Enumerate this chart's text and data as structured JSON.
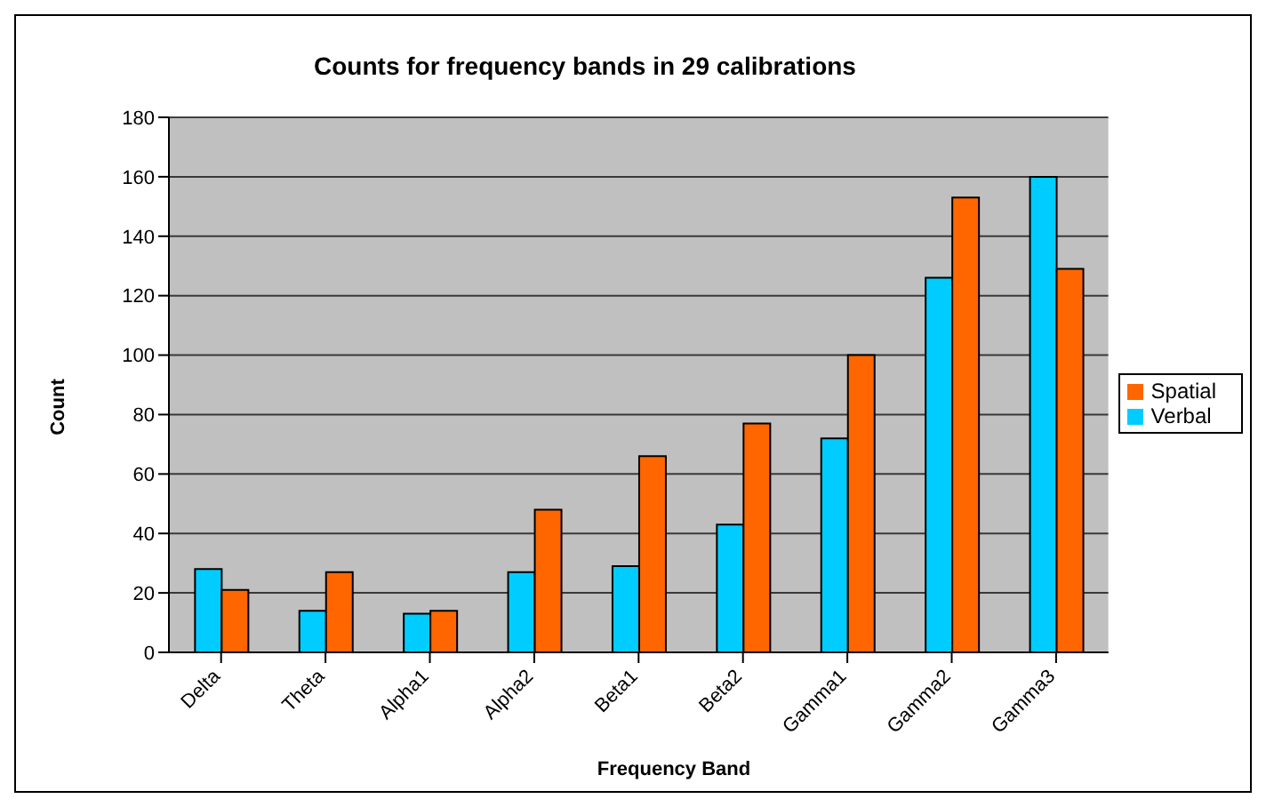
{
  "chart_data": {
    "type": "bar",
    "title": "Counts for frequency bands in 29 calibrations",
    "xlabel": "Frequency Band",
    "ylabel": "Count",
    "categories": [
      "Delta",
      "Theta",
      "Alpha1",
      "Alpha2",
      "Beta1",
      "Beta2",
      "Gamma1",
      "Gamma2",
      "Gamma3"
    ],
    "series": [
      {
        "name": "Verbal",
        "color": "#00ccff",
        "values": [
          28,
          14,
          13,
          27,
          29,
          43,
          72,
          126,
          160
        ]
      },
      {
        "name": "Spatial",
        "color": "#ff6600",
        "values": [
          21,
          27,
          14,
          48,
          66,
          77,
          100,
          153,
          129
        ]
      }
    ],
    "ylim": [
      0,
      180
    ],
    "yticks": [
      0,
      20,
      40,
      60,
      80,
      100,
      120,
      140,
      160,
      180
    ],
    "grid": "y",
    "legend": "right"
  }
}
